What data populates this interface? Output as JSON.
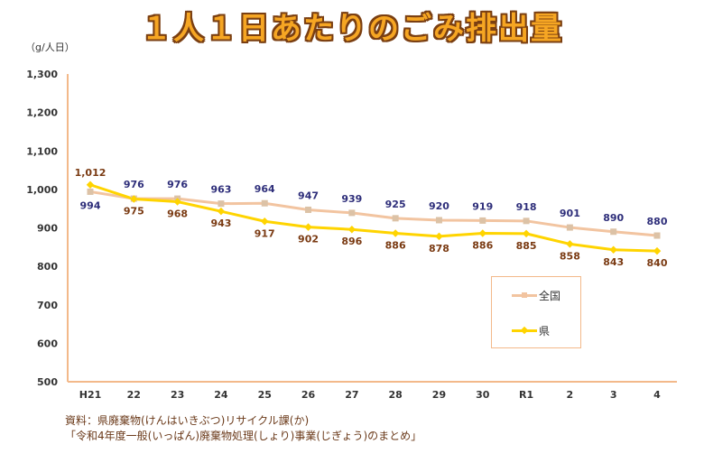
{
  "title": "１人１日あたりのごみ排出量",
  "unit_label": "（g/人日）",
  "source": {
    "line1": "資料：県廃棄物(けんはいきぶつ)リサイクル課(か)",
    "line2": "「令和4年度一般(いっぱん)廃棄物処理(しょり)事業(じぎょう)のまとめ」"
  },
  "chart_data": {
    "type": "line",
    "title": "１人１日あたりのごみ排出量",
    "ylabel": "（g/人日）",
    "xlabel": "",
    "ylim": [
      500,
      1300
    ],
    "yticks": [
      "500",
      "600",
      "700",
      "800",
      "900",
      "1,000",
      "1,100",
      "1,200",
      "1,300"
    ],
    "categories": [
      "H21",
      "22",
      "23",
      "24",
      "25",
      "26",
      "27",
      "28",
      "29",
      "30",
      "R1",
      "2",
      "3",
      "4"
    ],
    "series": [
      {
        "name": "全国",
        "color": "#f2c4a0",
        "values": [
          994,
          976,
          976,
          963,
          964,
          947,
          939,
          925,
          920,
          919,
          918,
          901,
          890,
          880
        ],
        "labels": [
          "994",
          "976",
          "976",
          "963",
          "964",
          "947",
          "939",
          "925",
          "920",
          "919",
          "918",
          "901",
          "890",
          "880"
        ]
      },
      {
        "name": "県",
        "color": "#ffd400",
        "values": [
          1012,
          975,
          968,
          943,
          917,
          902,
          896,
          886,
          878,
          886,
          885,
          858,
          843,
          840
        ],
        "labels": [
          "1,012",
          "975",
          "968",
          "943",
          "917",
          "902",
          "896",
          "886",
          "878",
          "886",
          "885",
          "858",
          "843",
          "840"
        ]
      }
    ],
    "legend_position": "bottom-right",
    "grid": false
  }
}
